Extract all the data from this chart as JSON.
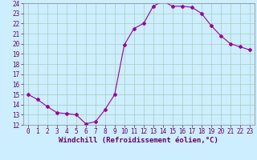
{
  "x": [
    0,
    1,
    2,
    3,
    4,
    5,
    6,
    7,
    8,
    9,
    10,
    11,
    12,
    13,
    14,
    15,
    16,
    17,
    18,
    19,
    20,
    21,
    22,
    23
  ],
  "y": [
    15,
    14.5,
    13.8,
    13.2,
    13.1,
    13.0,
    12.1,
    12.3,
    13.5,
    15.0,
    19.9,
    21.5,
    22.0,
    23.7,
    24.2,
    23.7,
    23.7,
    23.6,
    23.0,
    21.8,
    20.8,
    20.0,
    19.7,
    19.4
  ],
  "line_color": "#990099",
  "marker": "D",
  "marker_size": 2,
  "bg_color": "#cceeff",
  "grid_color": "#aaccbb",
  "xlabel": "Windchill (Refroidissement éolien,°C)",
  "ylabel": "",
  "xlim": [
    -0.5,
    23.5
  ],
  "ylim": [
    12,
    24
  ],
  "yticks": [
    12,
    13,
    14,
    15,
    16,
    17,
    18,
    19,
    20,
    21,
    22,
    23,
    24
  ],
  "xticks": [
    0,
    1,
    2,
    3,
    4,
    5,
    6,
    7,
    8,
    9,
    10,
    11,
    12,
    13,
    14,
    15,
    16,
    17,
    18,
    19,
    20,
    21,
    22,
    23
  ],
  "xlabel_fontsize": 6.5,
  "tick_fontsize": 5.5,
  "tick_color": "#660066",
  "axis_color": "#888888"
}
